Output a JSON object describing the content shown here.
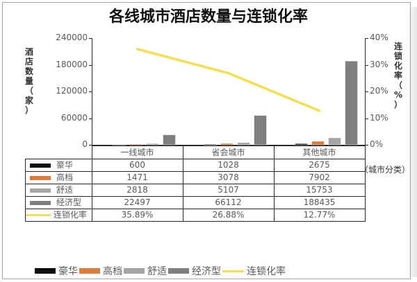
{
  "chart_data": {
    "type": "bar",
    "title": "各线城市酒店数量与连锁化率",
    "xlabel": "（城市分类）",
    "ylabel": "酒店数量（家）",
    "y2label": "连锁化率（%）",
    "categories": [
      "一线城市",
      "省会城市",
      "其他城市"
    ],
    "ylim": [
      0,
      240000
    ],
    "y2lim": [
      0,
      0.4
    ],
    "yticks": [
      "240000",
      "180000",
      "120000",
      "60000",
      "0"
    ],
    "y2ticks": [
      "40%",
      "30%",
      "20%",
      "10%",
      "0%"
    ],
    "grid": false,
    "legend_position": "bottom",
    "series": [
      {
        "name": "豪华",
        "type": "bar",
        "color": "#0d0d0d",
        "values": [
          600,
          1028,
          2675
        ],
        "labels": [
          "600",
          "1028",
          "2675"
        ]
      },
      {
        "name": "高档",
        "type": "bar",
        "color": "#e07b39",
        "values": [
          1471,
          3078,
          7902
        ],
        "labels": [
          "1471",
          "3078",
          "7902"
        ]
      },
      {
        "name": "舒适",
        "type": "bar",
        "color": "#a5a5a5",
        "values": [
          2818,
          5107,
          15753
        ],
        "labels": [
          "2818",
          "5107",
          "15753"
        ]
      },
      {
        "name": "经济型",
        "type": "bar",
        "color": "#7f7f7f",
        "values": [
          22497,
          66112,
          188435
        ],
        "labels": [
          "22497",
          "66112",
          "188435"
        ]
      },
      {
        "name": "连锁化率",
        "type": "line",
        "axis": "right",
        "color": "#f5e04a",
        "values": [
          0.3589,
          0.2688,
          0.1277
        ],
        "labels": [
          "35.89%",
          "26.88%",
          "12.77%"
        ]
      }
    ]
  },
  "ui": {
    "title": "各线城市酒店数量与连锁化率",
    "ylabel_chars": [
      "酒",
      "店",
      "数",
      "量",
      "（",
      "家",
      "）"
    ],
    "y2label_chars": [
      "连",
      "锁",
      "化",
      "率",
      "（",
      "%",
      "）"
    ],
    "xlabel": "（城市分类）"
  }
}
